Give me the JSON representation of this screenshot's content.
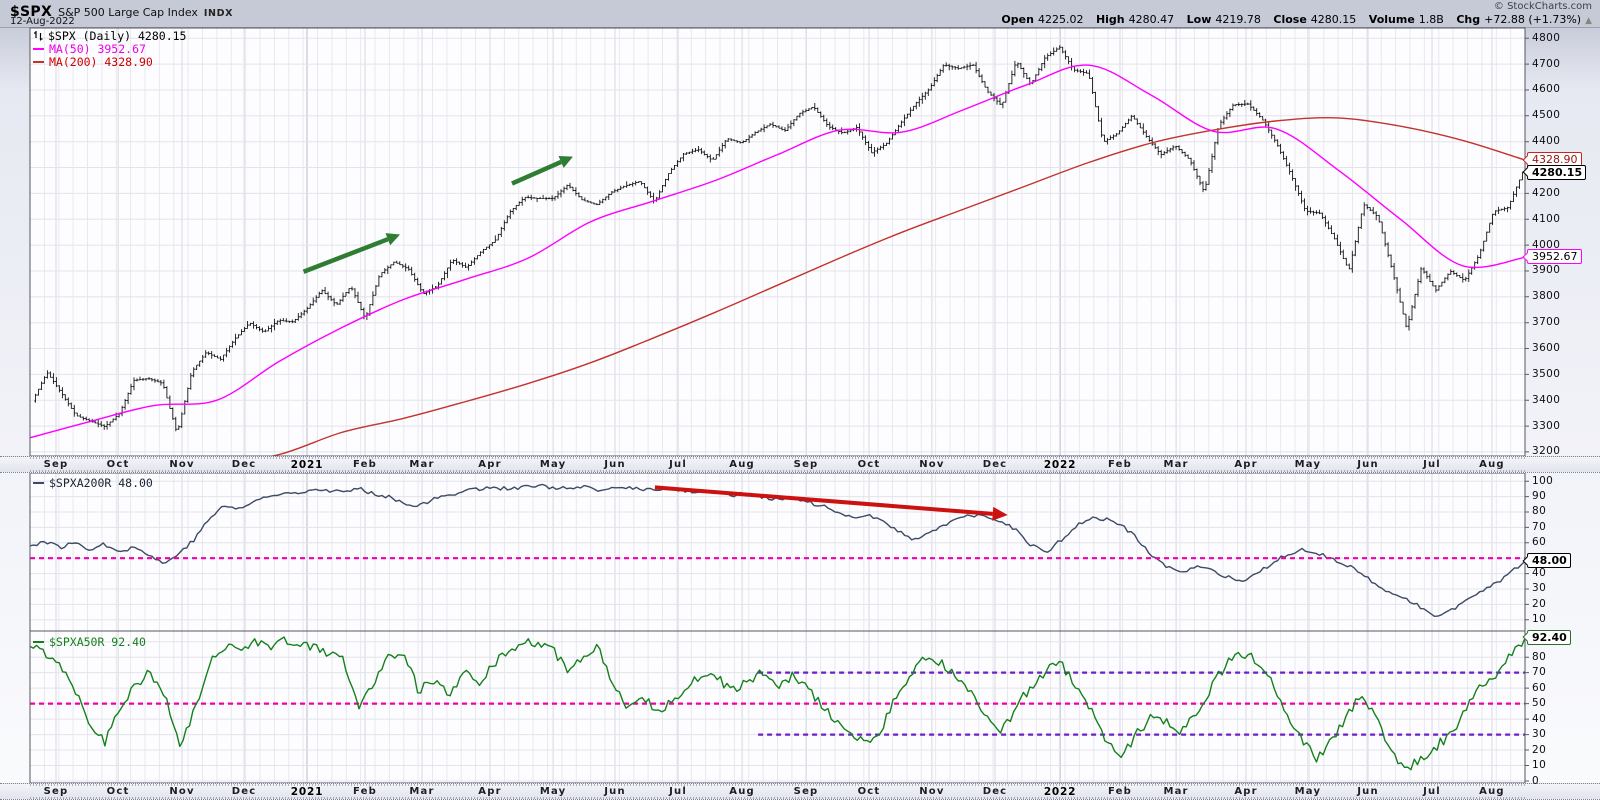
{
  "header": {
    "symbol": "$SPX",
    "name": "S&P 500 Large Cap Index",
    "exchange": "INDX",
    "date": "12-Aug-2022",
    "copyright": "© StockCharts.com",
    "quote": {
      "open_label": "Open",
      "open": "4225.02",
      "high_label": "High",
      "high": "4280.47",
      "low_label": "Low",
      "low": "4219.78",
      "close_label": "Close",
      "close": "4280.15",
      "volume_label": "Volume",
      "volume": "1.8B",
      "chg_label": "Chg",
      "chg": "+72.88 (+1.73%)",
      "change_direction": "▲"
    }
  },
  "colors": {
    "price_bar": "#0a0a0a",
    "ma50": "#ff00ff",
    "ma200": "#c2332b",
    "ma50_text": "#ee00ee",
    "ma200_text": "#cc0000",
    "a200r_line": "#3c4a63",
    "a50r_line": "#15801b",
    "dashed_magenta": "#ee00aa",
    "dashed_purple": "#6d20c5",
    "arrow_green": "#2e7d32",
    "arrow_red": "#cc1111",
    "grid_weekly": "#e8e9ef",
    "grid_monthly": "#d6d7e0",
    "grid_year": "#b9bbc8",
    "grid_h": "#e3e4eb",
    "frame": "#55565f",
    "plot_bg": "#fdfdff"
  },
  "chart_data": [
    {
      "panel": "price",
      "type": "ohlc",
      "legend": {
        "icon": "chart-type-icon",
        "title": "$SPX (Daily) 4280.15",
        "ma50_label": "MA(50) 3952.67",
        "ma200_label": "MA(200) 4328.90"
      },
      "ylim": [
        3192,
        4832
      ],
      "ytick_labels": [
        3200,
        3300,
        3400,
        3500,
        3600,
        3700,
        3800,
        3900,
        4000,
        4100,
        4200,
        4400,
        4500,
        4600,
        4700,
        4800
      ],
      "gridlines_y": [
        3200,
        3300,
        3400,
        3500,
        3600,
        3700,
        3800,
        3900,
        4000,
        4100,
        4200,
        4300,
        4400,
        4500,
        4600,
        4700,
        4800
      ],
      "x_months": [
        {
          "label": "Sep",
          "t": 0.0174
        },
        {
          "label": "Oct",
          "t": 0.0589
        },
        {
          "label": "Nov",
          "t": 0.1017
        },
        {
          "label": "Dec",
          "t": 0.1432
        },
        {
          "label": "2021",
          "t": 0.1853,
          "bold": true
        },
        {
          "label": "Feb",
          "t": 0.2241
        },
        {
          "label": "Mar",
          "t": 0.2622
        },
        {
          "label": "Apr",
          "t": 0.3077
        },
        {
          "label": "May",
          "t": 0.3499
        },
        {
          "label": "Jun",
          "t": 0.3913
        },
        {
          "label": "Jul",
          "t": 0.4335
        },
        {
          "label": "Aug",
          "t": 0.4763
        },
        {
          "label": "Sep",
          "t": 0.5191
        },
        {
          "label": "Oct",
          "t": 0.5612
        },
        {
          "label": "Nov",
          "t": 0.6033
        },
        {
          "label": "Dec",
          "t": 0.6455
        },
        {
          "label": "2022",
          "t": 0.689,
          "bold": true
        },
        {
          "label": "Feb",
          "t": 0.7291
        },
        {
          "label": "Mar",
          "t": 0.7666
        },
        {
          "label": "Apr",
          "t": 0.8134
        },
        {
          "label": "May",
          "t": 0.8548
        },
        {
          "label": "Jun",
          "t": 0.895
        },
        {
          "label": "Jul",
          "t": 0.9378
        },
        {
          "label": "Aug",
          "t": 0.9779
        }
      ],
      "weekly_closes": [
        3397,
        3508,
        3427,
        3341,
        3319,
        3298,
        3348,
        3477,
        3484,
        3465,
        3270,
        3509,
        3585,
        3558,
        3638,
        3699,
        3663,
        3709,
        3703,
        3756,
        3825,
        3768,
        3841,
        3714,
        3887,
        3935,
        3907,
        3811,
        3842,
        3943,
        3913,
        3975,
        4020,
        4129,
        4185,
        4180,
        4181,
        4233,
        4174,
        4156,
        4204,
        4230,
        4247,
        4166,
        4281,
        4352,
        4370,
        4327,
        4412,
        4395,
        4437,
        4468,
        4442,
        4509,
        4535,
        4459,
        4433,
        4455,
        4357,
        4391,
        4471,
        4545,
        4605,
        4698,
        4683,
        4698,
        4595,
        4538,
        4712,
        4621,
        4726,
        4766,
        4677,
        4663,
        4398,
        4432,
        4501,
        4419,
        4349,
        4385,
        4329,
        4204,
        4463,
        4543,
        4546,
        4488,
        4393,
        4272,
        4132,
        4123,
        4024,
        3901,
        4158,
        4109,
        3901,
        3675,
        3912,
        3825,
        3899,
        3863,
        3962,
        4130,
        4145,
        4280
      ],
      "ma50_monthly": [
        3255,
        3320,
        3380,
        3400,
        3550,
        3680,
        3790,
        3868,
        3950,
        4090,
        4170,
        4250,
        4350,
        4445,
        4437,
        4525,
        4620,
        4696,
        4580,
        4440,
        4450,
        4290,
        4100,
        3920,
        3953
      ],
      "ma200_monthly": [
        3090,
        3110,
        3130,
        3155,
        3190,
        3275,
        3330,
        3395,
        3465,
        3545,
        3640,
        3740,
        3845,
        3950,
        4050,
        4140,
        4230,
        4320,
        4395,
        4445,
        4480,
        4492,
        4460,
        4405,
        4329
      ],
      "right_labels": [
        {
          "text": "4328.90",
          "value": 4328.9,
          "border": "#cc2222",
          "text_color": "#991111",
          "bold": false
        },
        {
          "text": "4280.15",
          "value": 4280.15,
          "border": "#000000",
          "text_color": "#000000",
          "bold": true
        },
        {
          "text": "3952.67",
          "value": 3952.67,
          "border": "#ff00ff",
          "text_color": "#000000",
          "bold": false
        }
      ],
      "annotations": [
        {
          "type": "arrow",
          "color": "arrow_green",
          "t1": 0.183,
          "v1": 3897,
          "t2": 0.2475,
          "v2": 4041
        },
        {
          "type": "arrow",
          "color": "arrow_green",
          "t1": 0.3224,
          "v1": 4238,
          "t2": 0.3632,
          "v2": 4342
        }
      ]
    },
    {
      "panel": "pct_spx_above_200day_ma",
      "type": "line",
      "legend": {
        "title": "$SPXA200R 48.00"
      },
      "ylim": [
        4,
        104
      ],
      "ytick_labels": [
        100,
        90,
        80,
        70,
        60,
        40,
        30,
        20,
        10
      ],
      "gridlines_y": [
        10,
        20,
        30,
        40,
        50,
        60,
        70,
        80,
        90,
        100
      ],
      "values": [
        58,
        61,
        57,
        60,
        56,
        59,
        55,
        57,
        52,
        46,
        54,
        62,
        76,
        84,
        82,
        87,
        90,
        92,
        93,
        95,
        94,
        93,
        95,
        92,
        90,
        86,
        84,
        88,
        91,
        94,
        95,
        96,
        95,
        96,
        97,
        96,
        95,
        96,
        94,
        95,
        96,
        95,
        94,
        95,
        93,
        94,
        93,
        91,
        92,
        90,
        88,
        89,
        86,
        84,
        79,
        76,
        79,
        74,
        68,
        62,
        66,
        71,
        75,
        78,
        76,
        74,
        68,
        58,
        54,
        62,
        71,
        76,
        75,
        72,
        63,
        52,
        45,
        40,
        44,
        42,
        38,
        34,
        39,
        46,
        52,
        56,
        54,
        50,
        46,
        40,
        33,
        27,
        24,
        18,
        13,
        16,
        22,
        28,
        33,
        40,
        48
      ],
      "hlines": [
        {
          "value": 50,
          "color": "dashed_magenta",
          "t1": 0,
          "t2": 1
        }
      ],
      "right_labels": [
        {
          "text": "48.00",
          "value": 48,
          "border": "#000000",
          "text_color": "#000000",
          "bold": true
        }
      ],
      "annotations": [
        {
          "type": "arrow",
          "color": "arrow_red",
          "t1": 0.418,
          "v1": 96,
          "t2": 0.654,
          "v2": 78
        }
      ]
    },
    {
      "panel": "pct_spx_above_50day_ma",
      "type": "line",
      "legend": {
        "title": "$SPXA50R 92.40"
      },
      "ylim": [
        0,
        95.6
      ],
      "ytick_labels": [
        80,
        70,
        60,
        50,
        40,
        30,
        20,
        10,
        0
      ],
      "gridlines_y": [
        0,
        10,
        20,
        30,
        40,
        50,
        60,
        70,
        80,
        90
      ],
      "values": [
        87,
        83,
        76,
        60,
        38,
        25,
        48,
        62,
        70,
        55,
        22,
        45,
        75,
        88,
        86,
        90,
        87,
        91,
        88,
        86,
        83,
        78,
        46,
        65,
        80,
        85,
        58,
        65,
        55,
        70,
        62,
        75,
        85,
        90,
        88,
        84,
        72,
        80,
        86,
        60,
        48,
        55,
        45,
        52,
        62,
        70,
        66,
        58,
        64,
        70,
        62,
        68,
        60,
        48,
        38,
        28,
        24,
        35,
        55,
        70,
        80,
        76,
        68,
        55,
        42,
        32,
        48,
        62,
        72,
        75,
        62,
        45,
        25,
        16,
        30,
        42,
        38,
        32,
        45,
        60,
        75,
        83,
        78,
        65,
        45,
        28,
        14,
        25,
        40,
        55,
        42,
        20,
        8,
        14,
        22,
        30,
        45,
        60,
        68,
        80,
        92.4
      ],
      "hlines": [
        {
          "value": 50,
          "color": "dashed_magenta",
          "t1": 0,
          "t2": 1
        },
        {
          "value": 70,
          "color": "dashed_purple",
          "t1": 0.487,
          "t2": 1
        },
        {
          "value": 30,
          "color": "dashed_purple",
          "t1": 0.487,
          "t2": 1
        }
      ],
      "right_labels": [
        {
          "text": "92.40",
          "value": 92.4,
          "border": "#2e6b2e",
          "text_color": "#000000",
          "bold": true
        }
      ],
      "annotations": []
    }
  ]
}
